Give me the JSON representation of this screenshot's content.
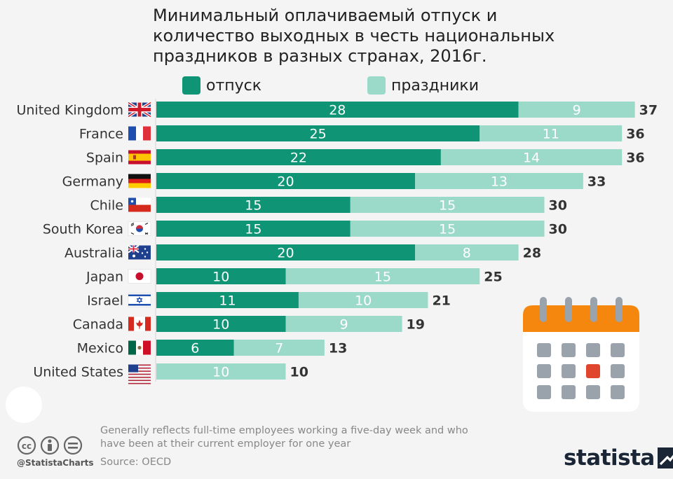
{
  "title": "Минимальный оплачиваемый отпуск и\nколичество выходных в честь национальных\nпраздников в разных странах, 2016г.",
  "colors": {
    "vacation": "#0f9576",
    "holidays": "#9bd9c9",
    "calendar_top": "#f5870f",
    "calendar_body": "#ffffff",
    "calendar_cell": "#9aa3ab",
    "calendar_highlight": "#e0452e"
  },
  "chart_data": {
    "type": "bar",
    "orientation": "horizontal",
    "stacked": true,
    "title": "Минимальный оплачиваемый отпуск и количество выходных в честь национальных праздников в разных странах, 2016г.",
    "categories": [
      "United Kingdom",
      "France",
      "Spain",
      "Germany",
      "Chile",
      "South Korea",
      "Australia",
      "Japan",
      "Israel",
      "Canada",
      "Mexico",
      "United States"
    ],
    "series": [
      {
        "name": "отпуск",
        "values": [
          28,
          25,
          22,
          20,
          15,
          15,
          20,
          10,
          11,
          10,
          6,
          0
        ]
      },
      {
        "name": "праздники",
        "values": [
          9,
          11,
          14,
          13,
          15,
          15,
          8,
          15,
          10,
          9,
          7,
          10
        ]
      }
    ],
    "totals": [
      37,
      36,
      36,
      33,
      30,
      30,
      28,
      25,
      21,
      19,
      13,
      10
    ],
    "xlim": [
      0,
      37
    ],
    "legend": "top",
    "grid": false,
    "xlabel": "",
    "ylabel": ""
  },
  "flags": [
    "uk-flag-icon",
    "france-flag-icon",
    "spain-flag-icon",
    "germany-flag-icon",
    "chile-flag-icon",
    "south-korea-flag-icon",
    "australia-flag-icon",
    "japan-flag-icon",
    "israel-flag-icon",
    "canada-flag-icon",
    "mexico-flag-icon",
    "usa-flag-icon"
  ],
  "decoration_icon": "calendar-icon",
  "footer": {
    "note": "Generally reflects full-time employees working a five-day week and who have been at their current employer for one year",
    "source": "Source: OECD",
    "handle": "@StatistaCharts",
    "logo": "statista",
    "license_icons": [
      "cc-icon",
      "by-icon",
      "equal-icon"
    ]
  }
}
